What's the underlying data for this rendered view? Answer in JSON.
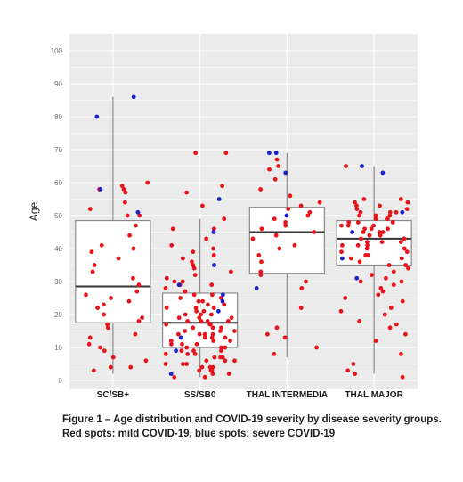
{
  "chart_data": {
    "type": "box-jitter",
    "ylabel": "Age",
    "xlabel": "",
    "ylim": [
      0,
      100
    ],
    "yticks": [
      0,
      10,
      20,
      30,
      40,
      50,
      60,
      70,
      80,
      90,
      100
    ],
    "grid": true,
    "categories": [
      "SC/SB+",
      "SS/SB0",
      "THAL INTERMEDIA",
      "THAL MAJOR"
    ],
    "colors": {
      "mild": "#e8141b",
      "severe": "#1b22c9",
      "panel": "#ebebeb",
      "box_fill": "#ffffff",
      "box_line": "#8a8a8a",
      "median": "#333333"
    },
    "boxes": [
      {
        "category": "SC/SB+",
        "min": 2,
        "q1": 17.5,
        "median": 28.5,
        "q3": 48.5,
        "max": 86
      },
      {
        "category": "SS/SB0",
        "min": 1,
        "q1": 10,
        "median": 17.5,
        "q3": 26.5,
        "max": 49
      },
      {
        "category": "THAL INTERMEDIA",
        "min": 7,
        "q1": 32.5,
        "median": 45,
        "q3": 52.5,
        "max": 69
      },
      {
        "category": "THAL MAJOR",
        "min": 2,
        "q1": 35,
        "median": 43,
        "q3": 48.5,
        "max": 65
      }
    ],
    "series": [
      {
        "name": "mild COVID-19",
        "points": [
          [
            0,
            58
          ],
          [
            0,
            58
          ],
          [
            0,
            59
          ],
          [
            0,
            60
          ],
          [
            0,
            57
          ],
          [
            0,
            54
          ],
          [
            0,
            52
          ],
          [
            0,
            50
          ],
          [
            0,
            50
          ],
          [
            0,
            47
          ],
          [
            0,
            44
          ],
          [
            0,
            41
          ],
          [
            0,
            40
          ],
          [
            0,
            39
          ],
          [
            0,
            37
          ],
          [
            0,
            35
          ],
          [
            0,
            33
          ],
          [
            0,
            31
          ],
          [
            0,
            29
          ],
          [
            0,
            27
          ],
          [
            0,
            26
          ],
          [
            0,
            25
          ],
          [
            0,
            24
          ],
          [
            0,
            23
          ],
          [
            0,
            22
          ],
          [
            0,
            20
          ],
          [
            0,
            19
          ],
          [
            0,
            18
          ],
          [
            0,
            17
          ],
          [
            0,
            16
          ],
          [
            0,
            14
          ],
          [
            0,
            13
          ],
          [
            0,
            11
          ],
          [
            0,
            10
          ],
          [
            0,
            9
          ],
          [
            0,
            7
          ],
          [
            0,
            6
          ],
          [
            0,
            4
          ],
          [
            0,
            4
          ],
          [
            0,
            3
          ],
          [
            1,
            69
          ],
          [
            1,
            69
          ],
          [
            1,
            59
          ],
          [
            1,
            57
          ],
          [
            1,
            53
          ],
          [
            1,
            49
          ],
          [
            1,
            46
          ],
          [
            1,
            46
          ],
          [
            1,
            43
          ],
          [
            1,
            41
          ],
          [
            1,
            40
          ],
          [
            1,
            39
          ],
          [
            1,
            38
          ],
          [
            1,
            37
          ],
          [
            1,
            36
          ],
          [
            1,
            35
          ],
          [
            1,
            34
          ],
          [
            1,
            33
          ],
          [
            1,
            32
          ],
          [
            1,
            31
          ],
          [
            1,
            30
          ],
          [
            1,
            30
          ],
          [
            1,
            29
          ],
          [
            1,
            28
          ],
          [
            1,
            27
          ],
          [
            1,
            27
          ],
          [
            1,
            26
          ],
          [
            1,
            25
          ],
          [
            1,
            25
          ],
          [
            1,
            24
          ],
          [
            1,
            24
          ],
          [
            1,
            23
          ],
          [
            1,
            23
          ],
          [
            1,
            22
          ],
          [
            1,
            22
          ],
          [
            1,
            21
          ],
          [
            1,
            21
          ],
          [
            1,
            20
          ],
          [
            1,
            20
          ],
          [
            1,
            20
          ],
          [
            1,
            19
          ],
          [
            1,
            19
          ],
          [
            1,
            19
          ],
          [
            1,
            18
          ],
          [
            1,
            18
          ],
          [
            1,
            18
          ],
          [
            1,
            17
          ],
          [
            1,
            17
          ],
          [
            1,
            17
          ],
          [
            1,
            16
          ],
          [
            1,
            16
          ],
          [
            1,
            16
          ],
          [
            1,
            15
          ],
          [
            1,
            15
          ],
          [
            1,
            15
          ],
          [
            1,
            14
          ],
          [
            1,
            14
          ],
          [
            1,
            14
          ],
          [
            1,
            13
          ],
          [
            1,
            13
          ],
          [
            1,
            13
          ],
          [
            1,
            12
          ],
          [
            1,
            12
          ],
          [
            1,
            12
          ],
          [
            1,
            11
          ],
          [
            1,
            11
          ],
          [
            1,
            11
          ],
          [
            1,
            10
          ],
          [
            1,
            10
          ],
          [
            1,
            10
          ],
          [
            1,
            9
          ],
          [
            1,
            9
          ],
          [
            1,
            9
          ],
          [
            1,
            8
          ],
          [
            1,
            8
          ],
          [
            1,
            8
          ],
          [
            1,
            7
          ],
          [
            1,
            7
          ],
          [
            1,
            7
          ],
          [
            1,
            6
          ],
          [
            1,
            6
          ],
          [
            1,
            6
          ],
          [
            1,
            5
          ],
          [
            1,
            5
          ],
          [
            1,
            5
          ],
          [
            1,
            4
          ],
          [
            1,
            4
          ],
          [
            1,
            4
          ],
          [
            1,
            3
          ],
          [
            1,
            3
          ],
          [
            1,
            3
          ],
          [
            1,
            2
          ],
          [
            1,
            2
          ],
          [
            1,
            1
          ],
          [
            1,
            1
          ],
          [
            1,
            29
          ],
          [
            1,
            26
          ],
          [
            1,
            22
          ],
          [
            1,
            18
          ],
          [
            1,
            14
          ],
          [
            2,
            67
          ],
          [
            2,
            65
          ],
          [
            2,
            64
          ],
          [
            2,
            61
          ],
          [
            2,
            58
          ],
          [
            2,
            56
          ],
          [
            2,
            54
          ],
          [
            2,
            53
          ],
          [
            2,
            52
          ],
          [
            2,
            51
          ],
          [
            2,
            50
          ],
          [
            2,
            49
          ],
          [
            2,
            48
          ],
          [
            2,
            47
          ],
          [
            2,
            46
          ],
          [
            2,
            45
          ],
          [
            2,
            44
          ],
          [
            2,
            43
          ],
          [
            2,
            41
          ],
          [
            2,
            40
          ],
          [
            2,
            38
          ],
          [
            2,
            36
          ],
          [
            2,
            33
          ],
          [
            2,
            32
          ],
          [
            2,
            30
          ],
          [
            2,
            28
          ],
          [
            2,
            22
          ],
          [
            2,
            16
          ],
          [
            2,
            14
          ],
          [
            2,
            13
          ],
          [
            2,
            10
          ],
          [
            2,
            8
          ],
          [
            3,
            65
          ],
          [
            3,
            55
          ],
          [
            3,
            55
          ],
          [
            3,
            54
          ],
          [
            3,
            54
          ],
          [
            3,
            53
          ],
          [
            3,
            53
          ],
          [
            3,
            52
          ],
          [
            3,
            52
          ],
          [
            3,
            51
          ],
          [
            3,
            51
          ],
          [
            3,
            51
          ],
          [
            3,
            50
          ],
          [
            3,
            50
          ],
          [
            3,
            50
          ],
          [
            3,
            49
          ],
          [
            3,
            49
          ],
          [
            3,
            49
          ],
          [
            3,
            48
          ],
          [
            3,
            48
          ],
          [
            3,
            48
          ],
          [
            3,
            47
          ],
          [
            3,
            47
          ],
          [
            3,
            47
          ],
          [
            3,
            46
          ],
          [
            3,
            46
          ],
          [
            3,
            46
          ],
          [
            3,
            45
          ],
          [
            3,
            45
          ],
          [
            3,
            45
          ],
          [
            3,
            44
          ],
          [
            3,
            44
          ],
          [
            3,
            44
          ],
          [
            3,
            43
          ],
          [
            3,
            43
          ],
          [
            3,
            43
          ],
          [
            3,
            42
          ],
          [
            3,
            42
          ],
          [
            3,
            42
          ],
          [
            3,
            41
          ],
          [
            3,
            41
          ],
          [
            3,
            41
          ],
          [
            3,
            40
          ],
          [
            3,
            40
          ],
          [
            3,
            39
          ],
          [
            3,
            39
          ],
          [
            3,
            38
          ],
          [
            3,
            38
          ],
          [
            3,
            37
          ],
          [
            3,
            37
          ],
          [
            3,
            36
          ],
          [
            3,
            35
          ],
          [
            3,
            35
          ],
          [
            3,
            34
          ],
          [
            3,
            33
          ],
          [
            3,
            32
          ],
          [
            3,
            31
          ],
          [
            3,
            30
          ],
          [
            3,
            30
          ],
          [
            3,
            29
          ],
          [
            3,
            28
          ],
          [
            3,
            27
          ],
          [
            3,
            26
          ],
          [
            3,
            25
          ],
          [
            3,
            24
          ],
          [
            3,
            22
          ],
          [
            3,
            21
          ],
          [
            3,
            20
          ],
          [
            3,
            18
          ],
          [
            3,
            17
          ],
          [
            3,
            16
          ],
          [
            3,
            14
          ],
          [
            3,
            12
          ],
          [
            3,
            8
          ],
          [
            3,
            5
          ],
          [
            3,
            3
          ],
          [
            3,
            2
          ],
          [
            3,
            1
          ]
        ]
      },
      {
        "name": "severe COVID-19",
        "points": [
          [
            0,
            86
          ],
          [
            0,
            80
          ],
          [
            0,
            58
          ],
          [
            0,
            51
          ],
          [
            1,
            55
          ],
          [
            1,
            45
          ],
          [
            1,
            35
          ],
          [
            1,
            29
          ],
          [
            1,
            26
          ],
          [
            1,
            24
          ],
          [
            1,
            21
          ],
          [
            1,
            13
          ],
          [
            1,
            9
          ],
          [
            1,
            2
          ],
          [
            2,
            69
          ],
          [
            2,
            69
          ],
          [
            2,
            63
          ],
          [
            2,
            50
          ],
          [
            2,
            28
          ],
          [
            3,
            65
          ],
          [
            3,
            63
          ],
          [
            3,
            51
          ],
          [
            3,
            45
          ],
          [
            3,
            37
          ],
          [
            3,
            31
          ]
        ]
      }
    ]
  },
  "caption": {
    "line1": "Figure 1 – Age distribution and COVID-19 severity by disease severity groups.",
    "line2": "Red spots: mild COVID-19, blue spots: severe COVID-19"
  }
}
